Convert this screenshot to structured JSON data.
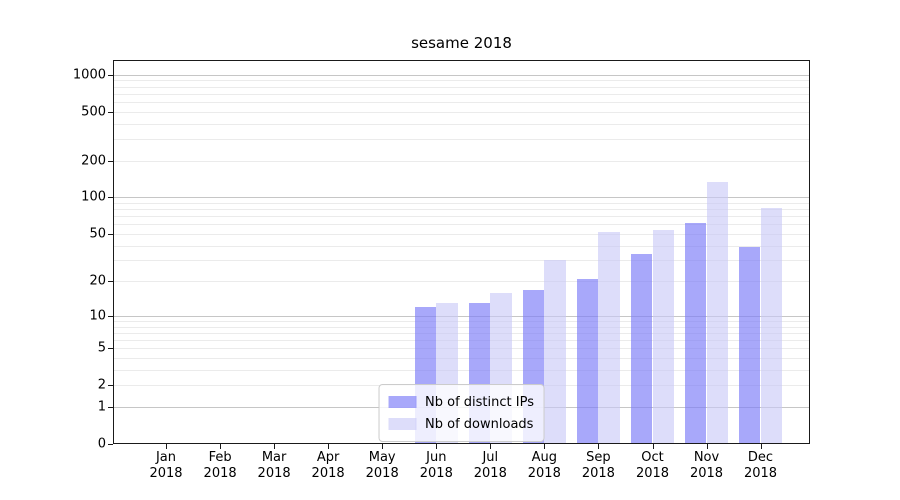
{
  "figure": {
    "title": "sesame 2018"
  },
  "chart_data": {
    "type": "bar",
    "title": "sesame 2018",
    "categories": [
      "Jan",
      "Feb",
      "Mar",
      "Apr",
      "May",
      "Jun",
      "Jul",
      "Aug",
      "Sep",
      "Oct",
      "Nov",
      "Dec"
    ],
    "year_label": "2018",
    "series": [
      {
        "name": "Nb of distinct IPs",
        "color": "rgba(123,123,247,0.66)",
        "values": [
          0,
          0,
          0,
          0,
          0,
          12,
          13,
          17,
          21,
          34,
          61,
          39
        ]
      },
      {
        "name": "Nb of downloads",
        "color": "rgba(200,200,247,0.62)",
        "values": [
          0,
          0,
          0,
          0,
          0,
          13,
          16,
          30,
          52,
          54,
          133,
          81
        ]
      }
    ],
    "y_scale": "log1p",
    "y_ticks": [
      0,
      1,
      2,
      5,
      10,
      20,
      50,
      100,
      200,
      500,
      1000
    ],
    "ylim": [
      0,
      1315
    ],
    "grid": "both",
    "legend_position": "lower center",
    "colors": {
      "major_grid": "#c6c6c6",
      "minor_grid": "#ebebeb",
      "axis": "#1a1a1a",
      "legend_border": "#cccccc",
      "ips_bar": "rgba(123,123,247,0.66)",
      "downloads_bar": "rgba(200,200,247,0.62)"
    }
  }
}
